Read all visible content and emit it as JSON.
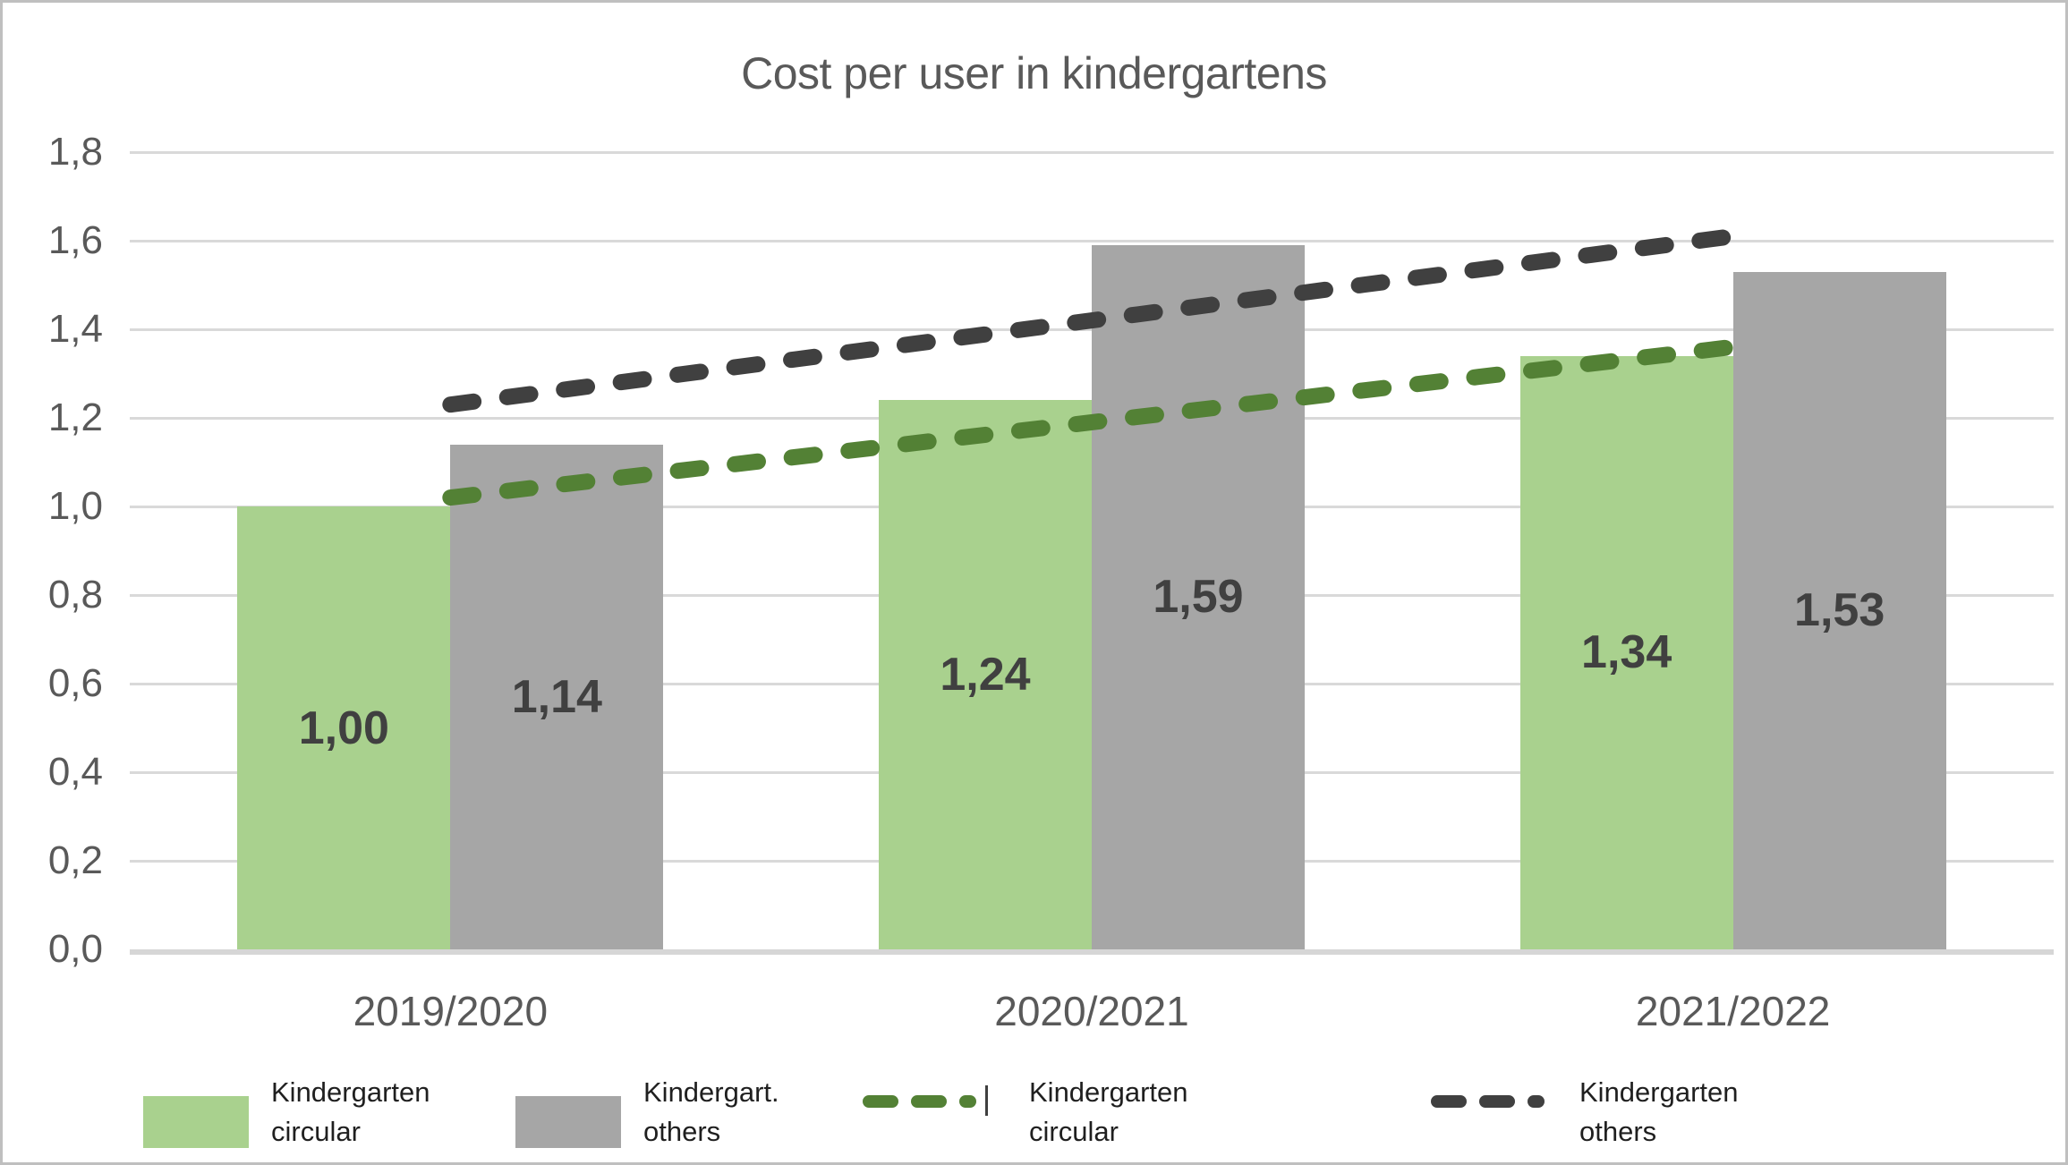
{
  "title": "Cost per user in kindergartens",
  "colors": {
    "title_text": "#595959",
    "axis_text": "#595959",
    "data_label_text": "#404040",
    "legend_text": "#1f1f1f",
    "gridline": "#d9d9d9",
    "bar_circular": "#a9d18e",
    "bar_others": "#a6a6a6",
    "trend_circular": "#538135",
    "trend_others": "#404040",
    "border": "#bfbfbf"
  },
  "chart_data": {
    "type": "bar",
    "title": "Cost per user in kindergartens",
    "categories": [
      "2019/2020",
      "2020/2021",
      "2021/2022"
    ],
    "series": [
      {
        "name": "Kindergarten circular",
        "type": "bar",
        "color": "#a9d18e",
        "values": [
          1.0,
          1.24,
          1.34
        ],
        "data_labels": [
          "1,00",
          "1,24",
          "1,34"
        ]
      },
      {
        "name": "Kindergart. others",
        "type": "bar",
        "color": "#a6a6a6",
        "values": [
          1.14,
          1.59,
          1.53
        ],
        "data_labels": [
          "1,14",
          "1,59",
          "1,53"
        ]
      },
      {
        "name": "Kindergarten circular",
        "type": "trendline-dashed",
        "color": "#538135",
        "endpoints": [
          1.02,
          1.36
        ]
      },
      {
        "name": "Kindergarten others",
        "type": "trendline-dashed",
        "color": "#404040",
        "endpoints": [
          1.23,
          1.61
        ]
      }
    ],
    "ylim": [
      0,
      1.8
    ],
    "ytick_step": 0.2,
    "ytick_labels": [
      "0,0",
      "0,2",
      "0,4",
      "0,6",
      "0,8",
      "1,0",
      "1,2",
      "1,4",
      "1,6",
      "1,8"
    ],
    "decimal_separator": ",",
    "grid": true,
    "legend_position": "bottom"
  },
  "legend": {
    "items": [
      {
        "label": "Kindergarten circular",
        "marker": "swatch",
        "color": "#a9d18e"
      },
      {
        "label": "Kindergart. others",
        "marker": "swatch",
        "color": "#a6a6a6"
      },
      {
        "label": "Kindergarten circular",
        "marker": "dashes",
        "color": "#538135"
      },
      {
        "label": "Kindergarten others",
        "marker": "dashes",
        "color": "#404040"
      }
    ]
  }
}
